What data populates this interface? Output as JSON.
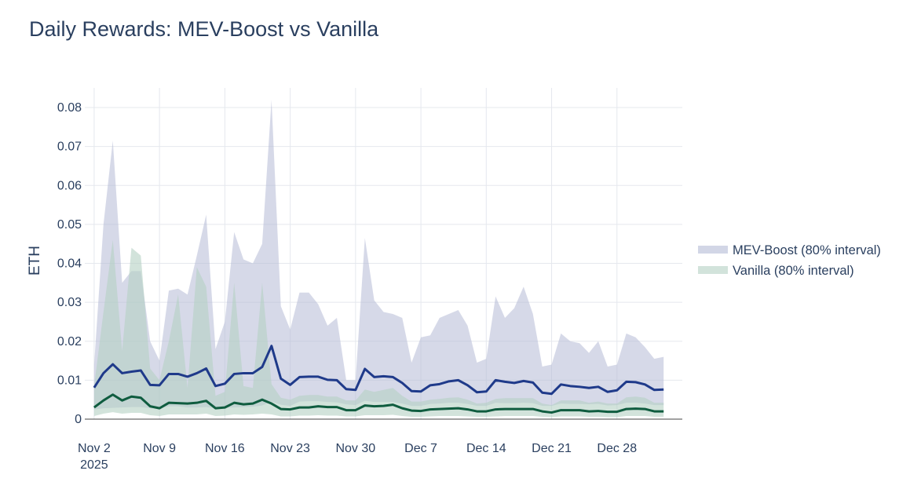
{
  "chart_data": {
    "type": "area",
    "title": "Daily Rewards: MEV-Boost vs Vanilla",
    "xlabel": "",
    "ylabel": "ETH",
    "ylim": [
      0,
      0.08
    ],
    "y_ticks": [
      0,
      0.01,
      0.02,
      0.03,
      0.04,
      0.05,
      0.06,
      0.07,
      0.08
    ],
    "y_tick_labels": [
      "0",
      "0.01",
      "0.02",
      "0.03",
      "0.04",
      "0.05",
      "0.06",
      "0.07",
      "0.08"
    ],
    "x_start": "2025-11-01",
    "x_end": "2026-01-04",
    "x_ticks": [
      "2025-11-02",
      "2025-11-09",
      "2025-11-16",
      "2025-11-23",
      "2025-11-30",
      "2025-12-07",
      "2025-12-14",
      "2025-12-21",
      "2025-12-28"
    ],
    "x_tick_labels": [
      "Nov 2",
      "Nov 9",
      "Nov 16",
      "Nov 23",
      "Nov 30",
      "Dec 7",
      "Dec 14",
      "Dec 21",
      "Dec 28"
    ],
    "x_tick_sublabel": "2025",
    "grid": true,
    "legend_position": "right",
    "series": [
      {
        "name": "MEV-Boost (80% interval)",
        "color": "#1f3a8a",
        "band_color": "#b4bad6",
        "x": [
          "2025-11-02",
          "2025-11-03",
          "2025-11-04",
          "2025-11-05",
          "2025-11-06",
          "2025-11-07",
          "2025-11-08",
          "2025-11-09",
          "2025-11-10",
          "2025-11-11",
          "2025-11-12",
          "2025-11-13",
          "2025-11-14",
          "2025-11-15",
          "2025-11-16",
          "2025-11-17",
          "2025-11-18",
          "2025-11-19",
          "2025-11-20",
          "2025-11-21",
          "2025-11-22",
          "2025-11-23",
          "2025-11-24",
          "2025-11-25",
          "2025-11-26",
          "2025-11-27",
          "2025-11-28",
          "2025-11-29",
          "2025-11-30",
          "2025-12-01",
          "2025-12-02",
          "2025-12-03",
          "2025-12-04",
          "2025-12-05",
          "2025-12-06",
          "2025-12-07",
          "2025-12-08",
          "2025-12-09",
          "2025-12-10",
          "2025-12-11",
          "2025-12-12",
          "2025-12-13",
          "2025-12-14",
          "2025-12-15",
          "2025-12-16",
          "2025-12-17",
          "2025-12-18",
          "2025-12-19",
          "2025-12-20",
          "2025-12-21",
          "2025-12-22",
          "2025-12-23",
          "2025-12-24",
          "2025-12-25",
          "2025-12-26",
          "2025-12-27",
          "2025-12-28",
          "2025-12-29",
          "2025-12-30",
          "2025-12-31",
          "2026-01-01",
          "2026-01-02"
        ],
        "mean": [
          0.0081,
          0.0118,
          0.0141,
          0.0118,
          0.0122,
          0.0125,
          0.0088,
          0.0087,
          0.0116,
          0.0116,
          0.0109,
          0.0118,
          0.013,
          0.0085,
          0.0091,
          0.0116,
          0.0118,
          0.0118,
          0.0134,
          0.0188,
          0.0104,
          0.0088,
          0.0108,
          0.0109,
          0.0109,
          0.0101,
          0.01,
          0.0077,
          0.0075,
          0.0129,
          0.0108,
          0.011,
          0.0108,
          0.0093,
          0.0072,
          0.0071,
          0.0087,
          0.009,
          0.0097,
          0.01,
          0.0087,
          0.0069,
          0.0071,
          0.01,
          0.0096,
          0.0093,
          0.0098,
          0.0094,
          0.0068,
          0.0065,
          0.0089,
          0.0085,
          0.0083,
          0.008,
          0.0083,
          0.007,
          0.0074,
          0.0096,
          0.0095,
          0.0089,
          0.0075,
          0.0076
        ],
        "lower": [
          0.0025,
          0.0028,
          0.0029,
          0.003,
          0.0031,
          0.0031,
          0.0028,
          0.0027,
          0.0033,
          0.0033,
          0.003,
          0.003,
          0.0031,
          0.0028,
          0.0029,
          0.003,
          0.0031,
          0.0032,
          0.0035,
          0.0045,
          0.0037,
          0.0034,
          0.0045,
          0.0046,
          0.0046,
          0.0044,
          0.0043,
          0.0038,
          0.0036,
          0.0047,
          0.0044,
          0.0044,
          0.0044,
          0.004,
          0.0034,
          0.0034,
          0.0039,
          0.004,
          0.0042,
          0.0042,
          0.0039,
          0.0034,
          0.0034,
          0.0042,
          0.0041,
          0.0041,
          0.0042,
          0.0041,
          0.0034,
          0.0034,
          0.004,
          0.0039,
          0.0039,
          0.0038,
          0.0039,
          0.0035,
          0.0036,
          0.0042,
          0.0042,
          0.004,
          0.0036,
          0.0036
        ],
        "upper": [
          0.014,
          0.05,
          0.0715,
          0.035,
          0.038,
          0.038,
          0.02,
          0.015,
          0.033,
          0.0335,
          0.032,
          0.042,
          0.0525,
          0.018,
          0.025,
          0.048,
          0.041,
          0.04,
          0.045,
          0.082,
          0.029,
          0.023,
          0.0325,
          0.0325,
          0.0295,
          0.024,
          0.026,
          0.01,
          0.01,
          0.0465,
          0.0305,
          0.0275,
          0.027,
          0.026,
          0.0145,
          0.021,
          0.0215,
          0.026,
          0.027,
          0.028,
          0.024,
          0.0145,
          0.0155,
          0.0315,
          0.026,
          0.0285,
          0.034,
          0.027,
          0.0135,
          0.014,
          0.022,
          0.02,
          0.0195,
          0.017,
          0.02,
          0.0135,
          0.014,
          0.022,
          0.021,
          0.0185,
          0.0155,
          0.016
        ]
      },
      {
        "name": "Vanilla (80% interval)",
        "color": "#0f5c3f",
        "band_color": "#b4d1c3",
        "x": [
          "2025-11-02",
          "2025-11-03",
          "2025-11-04",
          "2025-11-05",
          "2025-11-06",
          "2025-11-07",
          "2025-11-08",
          "2025-11-09",
          "2025-11-10",
          "2025-11-11",
          "2025-11-12",
          "2025-11-13",
          "2025-11-14",
          "2025-11-15",
          "2025-11-16",
          "2025-11-17",
          "2025-11-18",
          "2025-11-19",
          "2025-11-20",
          "2025-11-21",
          "2025-11-22",
          "2025-11-23",
          "2025-11-24",
          "2025-11-25",
          "2025-11-26",
          "2025-11-27",
          "2025-11-28",
          "2025-11-29",
          "2025-11-30",
          "2025-12-01",
          "2025-12-02",
          "2025-12-03",
          "2025-12-04",
          "2025-12-05",
          "2025-12-06",
          "2025-12-07",
          "2025-12-08",
          "2025-12-09",
          "2025-12-10",
          "2025-12-11",
          "2025-12-12",
          "2025-12-13",
          "2025-12-14",
          "2025-12-15",
          "2025-12-16",
          "2025-12-17",
          "2025-12-18",
          "2025-12-19",
          "2025-12-20",
          "2025-12-21",
          "2025-12-22",
          "2025-12-23",
          "2025-12-24",
          "2025-12-25",
          "2025-12-26",
          "2025-12-27",
          "2025-12-28",
          "2025-12-29",
          "2025-12-30",
          "2025-12-31",
          "2026-01-01",
          "2026-01-02"
        ],
        "mean": [
          0.003,
          0.0048,
          0.0063,
          0.0048,
          0.0058,
          0.0055,
          0.0033,
          0.0028,
          0.0042,
          0.0041,
          0.004,
          0.0042,
          0.0047,
          0.0028,
          0.003,
          0.0042,
          0.0038,
          0.004,
          0.005,
          0.004,
          0.0026,
          0.0025,
          0.003,
          0.003,
          0.0033,
          0.0031,
          0.0031,
          0.0023,
          0.0023,
          0.0035,
          0.0033,
          0.0034,
          0.0037,
          0.0028,
          0.0022,
          0.0021,
          0.0025,
          0.0026,
          0.0027,
          0.0028,
          0.0025,
          0.002,
          0.002,
          0.0025,
          0.0026,
          0.0026,
          0.0026,
          0.0026,
          0.002,
          0.0017,
          0.0023,
          0.0023,
          0.0023,
          0.002,
          0.0021,
          0.0019,
          0.0019,
          0.0026,
          0.0027,
          0.0026,
          0.002,
          0.002
        ],
        "lower": [
          0.0008,
          0.0014,
          0.0018,
          0.0014,
          0.0016,
          0.0016,
          0.001,
          0.0008,
          0.0012,
          0.0012,
          0.0012,
          0.0012,
          0.0014,
          0.0008,
          0.0009,
          0.0012,
          0.0011,
          0.0012,
          0.0014,
          0.0012,
          0.0007,
          0.0007,
          0.0009,
          0.0009,
          0.001,
          0.0009,
          0.0009,
          0.0007,
          0.0007,
          0.001,
          0.001,
          0.001,
          0.0011,
          0.0008,
          0.0006,
          0.0006,
          0.0007,
          0.0008,
          0.0008,
          0.0008,
          0.0007,
          0.0006,
          0.0006,
          0.0007,
          0.0008,
          0.0008,
          0.0008,
          0.0008,
          0.0006,
          0.0005,
          0.0007,
          0.0007,
          0.0007,
          0.0006,
          0.0006,
          0.0005,
          0.0005,
          0.0008,
          0.0008,
          0.0008,
          0.0006,
          0.0006
        ],
        "upper": [
          0.0085,
          0.0275,
          0.046,
          0.0175,
          0.044,
          0.042,
          0.013,
          0.01,
          0.02,
          0.032,
          0.008,
          0.039,
          0.034,
          0.006,
          0.007,
          0.035,
          0.0085,
          0.008,
          0.035,
          0.009,
          0.0055,
          0.005,
          0.006,
          0.0062,
          0.0062,
          0.0058,
          0.0058,
          0.0048,
          0.0048,
          0.0076,
          0.007,
          0.0075,
          0.008,
          0.006,
          0.0045,
          0.0045,
          0.005,
          0.0052,
          0.0055,
          0.0056,
          0.005,
          0.004,
          0.0042,
          0.0052,
          0.0054,
          0.0054,
          0.0054,
          0.0054,
          0.004,
          0.0036,
          0.0048,
          0.0048,
          0.0048,
          0.0042,
          0.0045,
          0.004,
          0.004,
          0.0056,
          0.0058,
          0.0055,
          0.0042,
          0.0042
        ]
      }
    ]
  }
}
